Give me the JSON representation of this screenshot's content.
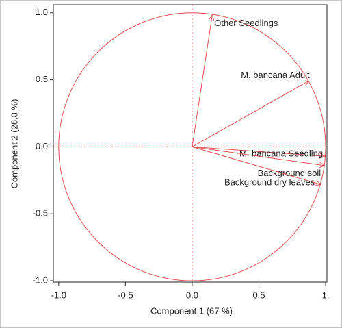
{
  "chart_data": {
    "type": "biplot",
    "xlabel": "Component 1 (67 %)",
    "ylabel": "Component 2 (26.8 %)",
    "xlim": [
      -1.04,
      1.01
    ],
    "ylim": [
      -1.01,
      1.06
    ],
    "xticks": [
      {
        "value": -1.0,
        "label": "-1.0"
      },
      -0.5,
      {
        "value": 0.0,
        "label": "0.0"
      },
      0.5,
      {
        "value": 1.0,
        "label": "1."
      }
    ],
    "yticks": [
      {
        "value": -1.0,
        "label": "-1.0"
      },
      -0.5,
      {
        "value": 0.0,
        "label": "0.0"
      },
      0.5,
      {
        "value": 1.0,
        "label": "1.0"
      }
    ],
    "color": "#e0504f",
    "vectors": {
      "labels": [
        "Other Seedlings",
        "M. bancana Adult",
        "M. bancana Seedling",
        "Background soil",
        "Background dry leaves"
      ],
      "x": [
        0.15,
        0.87,
        0.99,
        0.99,
        0.96
      ],
      "y": [
        0.98,
        0.49,
        -0.07,
        -0.14,
        -0.28
      ]
    }
  }
}
